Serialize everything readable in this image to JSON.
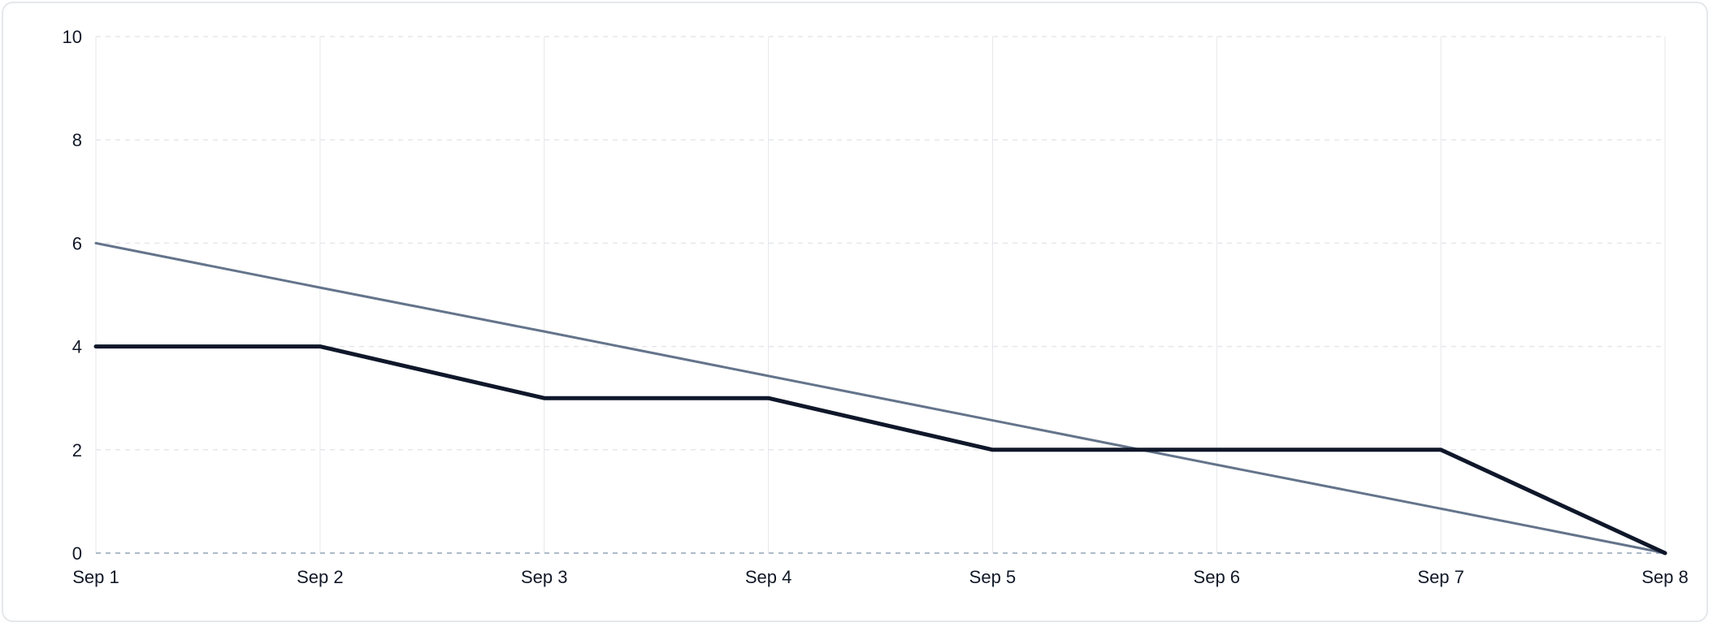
{
  "chart_data": {
    "type": "line",
    "title": "",
    "xlabel": "",
    "ylabel": "",
    "categories": [
      "Sep 1",
      "Sep 2",
      "Sep 3",
      "Sep 4",
      "Sep 5",
      "Sep 6",
      "Sep 7",
      "Sep 8"
    ],
    "ylim": [
      0,
      10
    ],
    "yticks": [
      0,
      2,
      4,
      6,
      8,
      10
    ],
    "grid": true,
    "legend": "none",
    "series": [
      {
        "key": "ideal",
        "color": "#64748b",
        "values": [
          6,
          5.14,
          4.29,
          3.43,
          2.57,
          1.71,
          0.86,
          0
        ]
      },
      {
        "key": "actual",
        "color": "#0f172a",
        "values": [
          4,
          4,
          3,
          3,
          2,
          2,
          2,
          0
        ]
      }
    ],
    "colors": {
      "grid": "#e5e7eb",
      "baseline": "#94a3b8",
      "tick_text": "#111827",
      "card_border": "#e5e7eb"
    }
  }
}
